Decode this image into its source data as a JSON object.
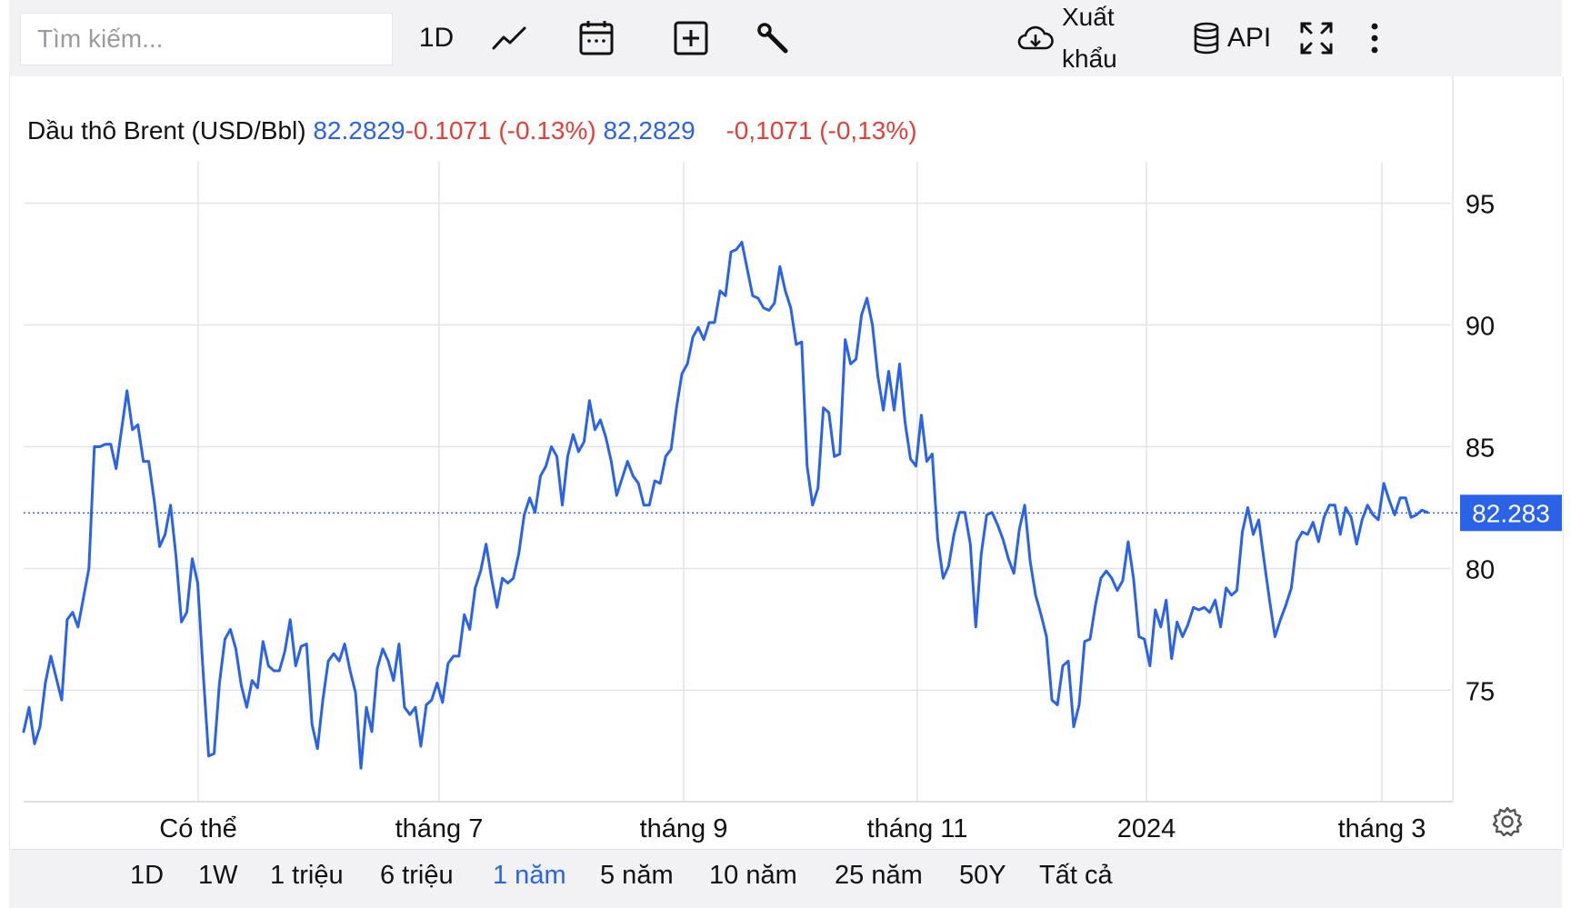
{
  "search": {
    "placeholder": "Tìm kiếm..."
  },
  "toolbar": {
    "interval_label": "1D",
    "chart_type_icon": "line-chart-icon",
    "calendar_icon": "calendar-icon",
    "add_icon": "plus-box-icon",
    "tools_icon": "wrench-icon",
    "export_label_line1": "Xuất",
    "export_label_line2": "khẩu",
    "api_label": "API",
    "fullscreen_icon": "expand-icon",
    "more_icon": "more-vertical-icon"
  },
  "legend": {
    "name": "Dầu thô Brent (USD/Bbl)",
    "value": "82.2829",
    "change": "-0.1071 (-0.13%)",
    "value_local": "82,2829",
    "change_local": "-0,1071 (-0,13%)"
  },
  "colors": {
    "line": "#2a62e8",
    "accent": "#2a62e8",
    "negative": "#e0403a",
    "grid": "#e4e4e8"
  },
  "chart_data": {
    "type": "line",
    "series": [
      {
        "values": [
          73.3,
          74.3,
          72.8,
          73.5,
          75.3,
          76.4,
          75.5,
          74.6,
          77.9,
          78.2,
          77.6,
          78.8,
          80.0,
          85.0,
          85.0,
          85.1,
          85.1,
          84.1,
          85.7,
          87.3,
          85.7,
          85.9,
          84.4,
          84.4,
          82.8,
          80.9,
          81.4,
          82.6,
          80.5,
          77.8,
          78.2,
          80.4,
          79.4,
          75.7,
          72.3,
          72.4,
          75.3,
          77.1,
          77.5,
          76.7,
          75.2,
          74.3,
          75.4,
          75.1,
          77.0,
          76.0,
          75.8,
          75.8,
          76.6,
          77.9,
          76.0,
          76.8,
          76.9,
          73.6,
          72.6,
          74.6,
          76.2,
          76.5,
          76.2,
          76.9,
          75.8,
          74.9,
          71.8,
          74.3,
          73.3,
          75.9,
          76.7,
          76.2,
          75.4,
          76.9,
          74.3,
          74.0,
          74.3,
          72.7,
          74.4,
          74.6,
          75.3,
          74.5,
          76.1,
          76.4,
          76.4,
          78.1,
          77.5,
          79.2,
          79.9,
          81.0,
          79.6,
          78.4,
          79.6,
          79.4,
          79.6,
          80.6,
          82.2,
          82.9,
          82.3,
          83.8,
          84.2,
          85.0,
          84.6,
          82.6,
          84.6,
          85.5,
          84.8,
          85.2,
          86.9,
          85.7,
          86.1,
          85.4,
          84.4,
          83.0,
          83.7,
          84.4,
          83.8,
          83.5,
          82.6,
          82.6,
          83.6,
          83.5,
          84.6,
          84.9,
          86.6,
          88.0,
          88.4,
          89.5,
          89.9,
          89.4,
          90.1,
          90.1,
          91.4,
          91.2,
          93.0,
          93.1,
          93.4,
          92.3,
          91.2,
          91.1,
          90.7,
          90.6,
          90.9,
          92.4,
          91.4,
          90.7,
          89.2,
          89.3,
          84.2,
          82.6,
          83.3,
          86.6,
          86.4,
          84.6,
          84.7,
          89.4,
          88.4,
          88.6,
          90.4,
          91.1,
          90.0,
          87.9,
          86.5,
          88.1,
          86.5,
          88.4,
          86.0,
          84.5,
          84.2,
          86.3,
          84.4,
          84.7,
          81.2,
          79.6,
          80.1,
          81.4,
          82.3,
          82.3,
          81.0,
          77.6,
          80.6,
          82.2,
          82.3,
          81.8,
          81.2,
          80.4,
          79.8,
          81.6,
          82.6,
          80.3,
          78.9,
          78.1,
          77.2,
          74.6,
          74.4,
          76.0,
          76.2,
          73.5,
          74.4,
          77.0,
          77.1,
          78.5,
          79.6,
          79.9,
          79.6,
          79.1,
          79.5,
          81.1,
          79.6,
          77.2,
          77.1,
          76.0,
          78.3,
          77.6,
          78.7,
          76.3,
          77.8,
          77.2,
          77.7,
          78.4,
          78.3,
          78.4,
          78.2,
          78.7,
          77.6,
          79.2,
          78.9,
          79.1,
          81.5,
          82.5,
          81.4,
          82.0,
          80.3,
          78.7,
          77.2,
          77.9,
          78.5,
          79.2,
          81.1,
          81.5,
          81.4,
          81.9,
          81.1,
          82.1,
          82.6,
          82.6,
          81.4,
          82.5,
          82.1,
          81.0,
          82.0,
          82.6,
          82.2,
          82.0,
          83.5,
          82.8,
          82.2,
          82.9,
          82.9,
          82.1,
          82.2,
          82.4,
          82.3
        ]
      }
    ],
    "y_ticks": [
      95,
      90,
      85,
      80,
      75
    ],
    "ylim": [
      70.5,
      97
    ],
    "x_tick_labels": [
      "Có thể",
      "tháng 7",
      "tháng 9",
      "tháng 11",
      "2024",
      "tháng 3"
    ],
    "last_value": 82.2829,
    "last_value_label": "82.283",
    "grid": true,
    "reference_line": "last-value-dotted"
  },
  "ranges": [
    "1D",
    "1W",
    "1 triệu",
    "6 triệu",
    "1 năm",
    "5 năm",
    "10 năm",
    "25 năm",
    "50Y",
    "Tất cả"
  ],
  "active_range": "1 năm"
}
